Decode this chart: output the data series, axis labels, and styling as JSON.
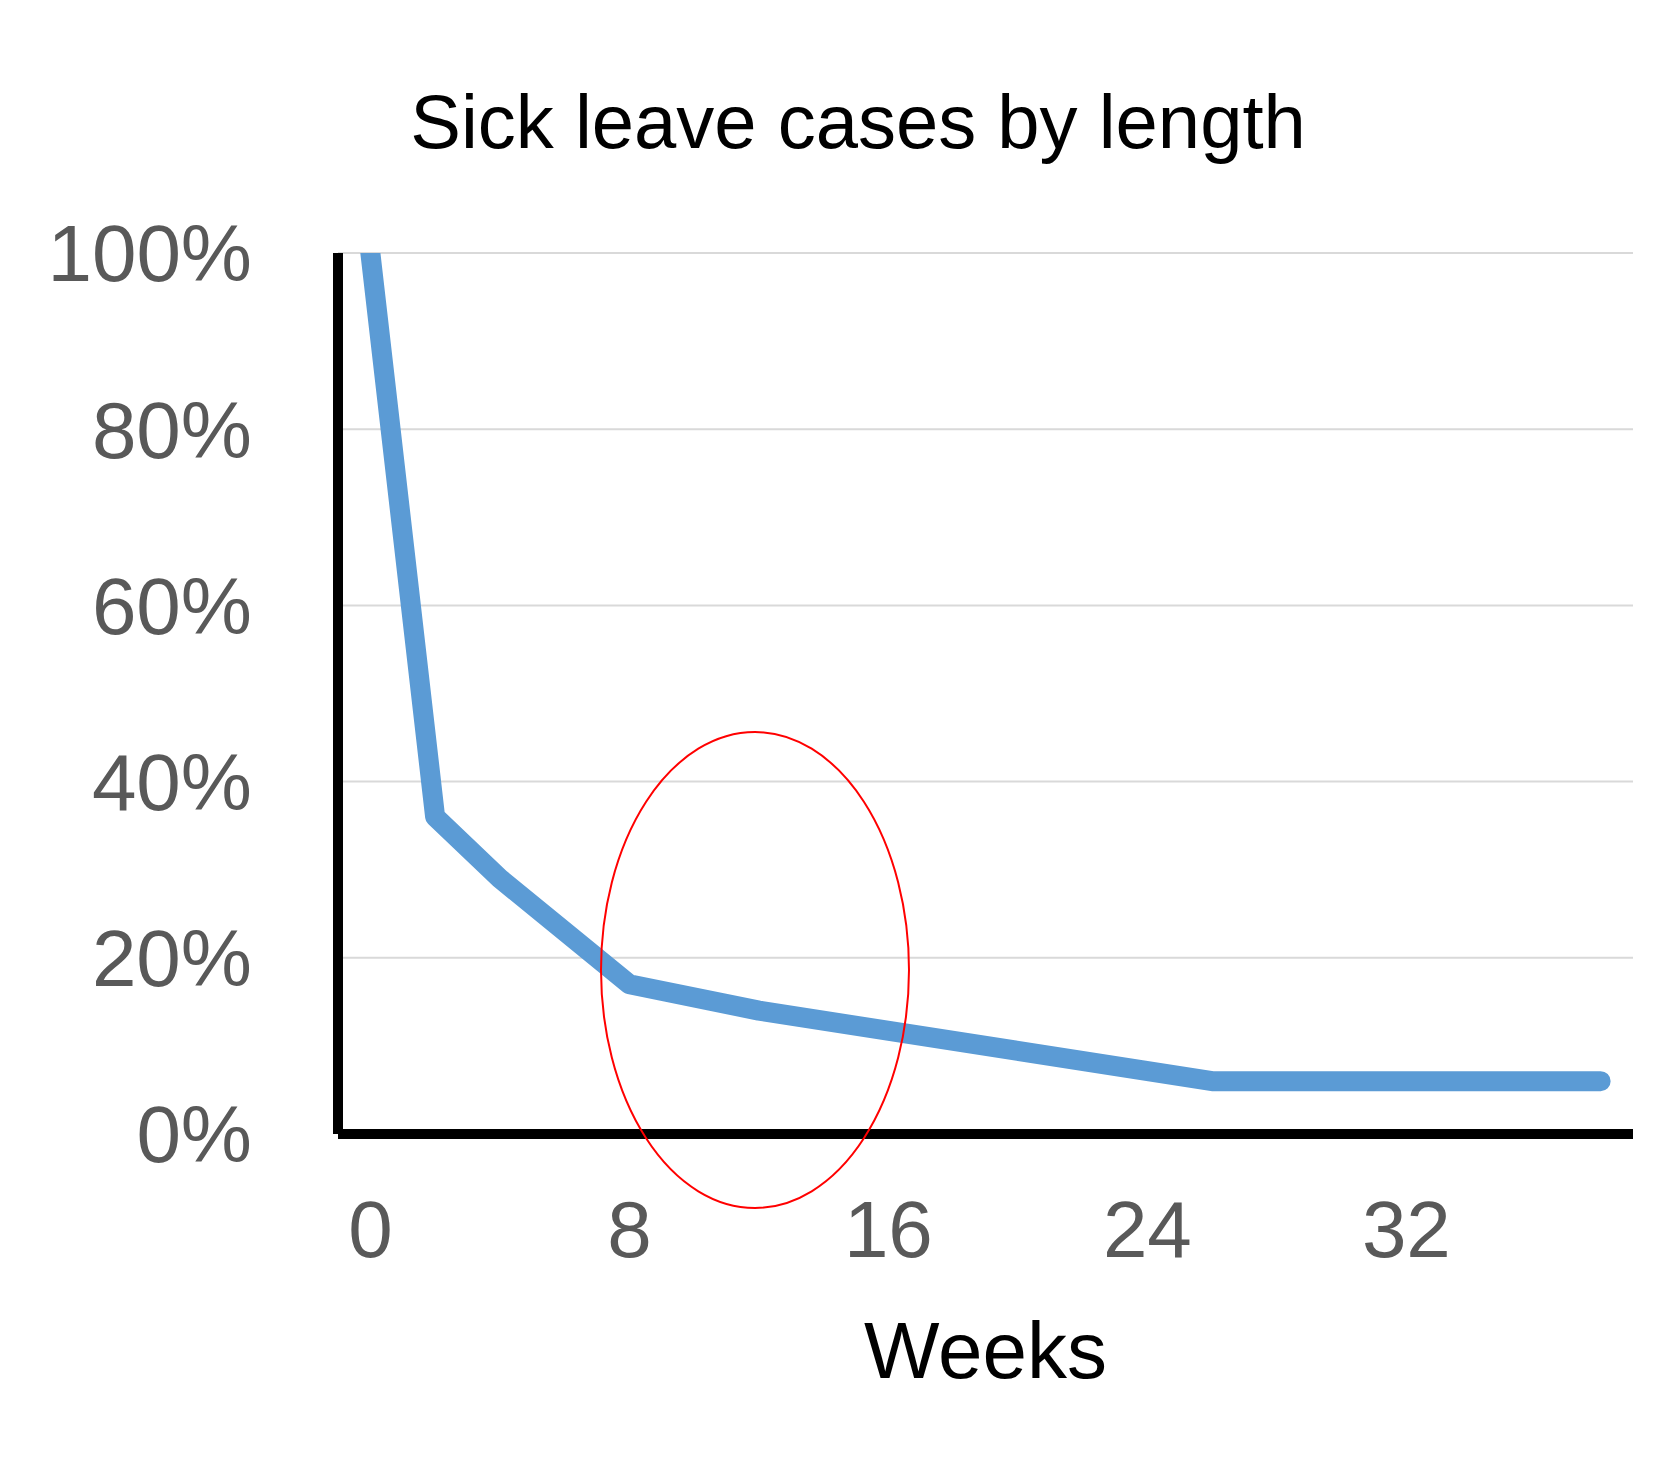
{
  "chart_data": {
    "type": "line",
    "title": "Sick leave cases by length",
    "xlabel": "Weeks",
    "x": [
      0,
      2,
      4,
      8,
      12,
      26,
      38
    ],
    "series": [
      {
        "color": "#5b9bd5",
        "values": [
          100,
          36,
          29,
          17,
          14,
          6,
          6
        ]
      }
    ],
    "xlim": [
      -1,
      39
    ],
    "xticks": [
      0,
      8,
      16,
      24,
      32
    ],
    "ylim": [
      0,
      100
    ],
    "yticks": [
      {
        "value": 0,
        "label": "0%"
      },
      {
        "value": 20,
        "label": "20%"
      },
      {
        "value": 40,
        "label": "40%"
      },
      {
        "value": 60,
        "label": "60%"
      },
      {
        "value": 80,
        "label": "80%"
      },
      {
        "value": 100,
        "label": "100%"
      }
    ],
    "grid": "y",
    "legend": false,
    "marker": "none",
    "line_style": "solid"
  }
}
